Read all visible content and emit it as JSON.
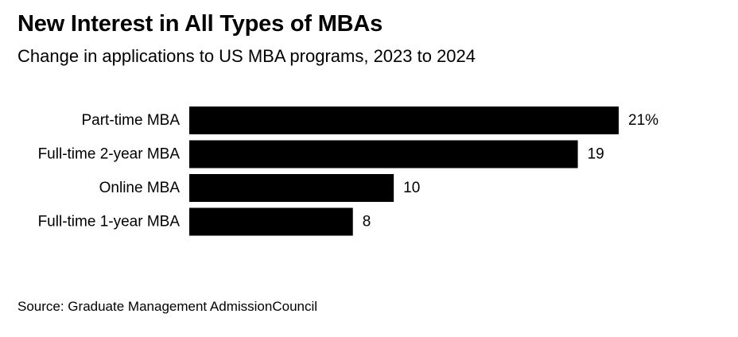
{
  "header": {
    "title": "New Interest in All Types of MBAs",
    "subtitle": "Change in applications to US MBA programs, 2023 to 2024"
  },
  "footer": {
    "source": "Source: Graduate Management AdmissionCouncil"
  },
  "colors": {
    "bar": "#000000",
    "text": "#000000",
    "background": "#ffffff"
  },
  "chart_data": {
    "type": "bar",
    "orientation": "horizontal",
    "categories": [
      "Part-time MBA",
      "Full-time 2-year MBA",
      "Online MBA",
      "Full-time 1-year MBA"
    ],
    "values": [
      21,
      19,
      10,
      8
    ],
    "value_labels": [
      "21%",
      "19",
      "10",
      "8"
    ],
    "title": "New Interest in All Types of MBAs",
    "subtitle": "Change in applications to US MBA programs, 2023 to 2024",
    "xlim": [
      0,
      21
    ],
    "grid": false,
    "legend": "none"
  }
}
